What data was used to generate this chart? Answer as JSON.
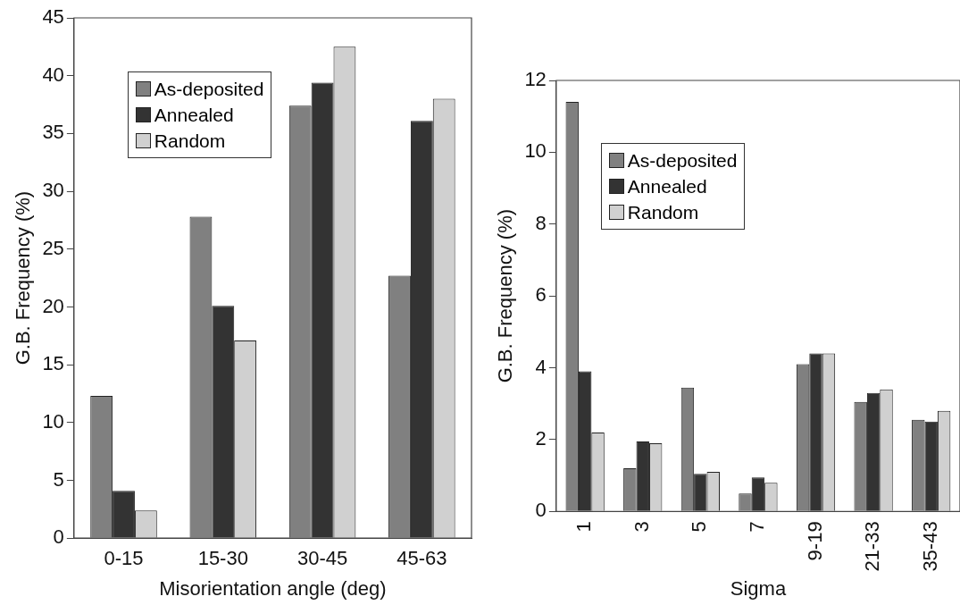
{
  "chart_data": [
    {
      "type": "bar",
      "xlabel": "Misorientation angle (deg)",
      "ylabel": "G.B. Frequency (%)",
      "categories": [
        "0-15",
        "15-30",
        "30-45",
        "45-63"
      ],
      "series": [
        {
          "name": "As-deposited",
          "color": "#808080",
          "values": [
            12.3,
            27.8,
            37.4,
            22.7
          ]
        },
        {
          "name": "Annealed",
          "color": "#333333",
          "values": [
            4.1,
            20.1,
            39.4,
            36.1
          ]
        },
        {
          "name": "Random",
          "color": "#d0d0d0",
          "values": [
            2.4,
            17.1,
            42.5,
            38.0
          ]
        }
      ],
      "ylim": [
        0,
        45
      ],
      "yticks": [
        0,
        5,
        10,
        15,
        20,
        25,
        30,
        35,
        40,
        45
      ],
      "grid": false,
      "legend": "top left"
    },
    {
      "type": "bar",
      "xlabel": "Sigma",
      "ylabel": "G.B. Frequency (%)",
      "categories": [
        "1",
        "3",
        "5",
        "7",
        "9-19",
        "21-33",
        "35-43"
      ],
      "series": [
        {
          "name": "As-deposited",
          "color": "#808080",
          "values": [
            11.4,
            1.2,
            3.45,
            0.5,
            4.1,
            3.05,
            2.55
          ]
        },
        {
          "name": "Annealed",
          "color": "#333333",
          "values": [
            3.9,
            1.95,
            1.05,
            0.95,
            4.4,
            3.3,
            2.5
          ]
        },
        {
          "name": "Random",
          "color": "#d0d0d0",
          "values": [
            2.2,
            1.9,
            1.1,
            0.8,
            4.4,
            3.4,
            2.8
          ]
        }
      ],
      "ylim": [
        0,
        12
      ],
      "yticks": [
        0,
        2,
        4,
        6,
        8,
        10,
        12
      ],
      "grid": false,
      "legend": "top left"
    }
  ]
}
